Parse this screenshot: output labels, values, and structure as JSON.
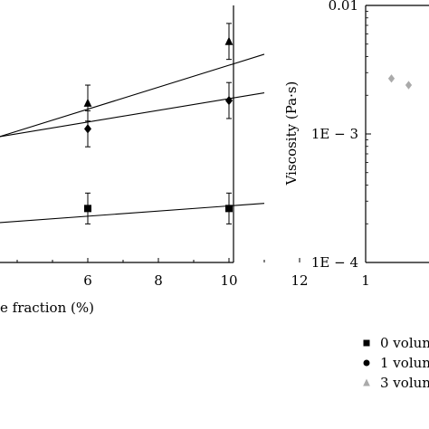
{
  "chart_data": [
    {
      "type": "scatter",
      "title": "",
      "xlabel": "e fraction (%)",
      "ylabel": "",
      "xlim": [
        0,
        12
      ],
      "xticks": [
        "6",
        "8",
        "10",
        "12"
      ],
      "grid": false,
      "series": [
        {
          "marker": "triangle",
          "points": [
            {
              "x": 6,
              "y": 0.62,
              "err": 0.07
            },
            {
              "x": 10,
              "y": 0.86,
              "err": 0.07
            }
          ],
          "fit": [
            {
              "x": 0,
              "y": 0.34
            },
            {
              "x": 11,
              "y": 0.81
            }
          ]
        },
        {
          "marker": "diamond",
          "points": [
            {
              "x": 6,
              "y": 0.52,
              "err": 0.07
            },
            {
              "x": 10,
              "y": 0.63,
              "err": 0.07
            }
          ],
          "fit": [
            {
              "x": 0,
              "y": 0.41
            },
            {
              "x": 11,
              "y": 0.66
            }
          ]
        },
        {
          "marker": "square",
          "points": [
            {
              "x": 6,
              "y": 0.21,
              "err": 0.06
            },
            {
              "x": 10,
              "y": 0.21,
              "err": 0.06
            }
          ],
          "fit": [
            {
              "x": 0,
              "y": 0.12
            },
            {
              "x": 11,
              "y": 0.23
            }
          ]
        }
      ]
    },
    {
      "type": "scatter",
      "title": "",
      "xlabel": "",
      "ylabel": "Viscosity (Pa·s)",
      "yscale": "log",
      "ylim": [
        0.0001,
        0.01
      ],
      "yticks": [
        "0.01",
        "1E − 3",
        "1E − 4"
      ],
      "xticks": [
        "1"
      ],
      "grid": false,
      "series": [
        {
          "name": "3 volun",
          "marker": "triangle",
          "color": "#aaaaaa",
          "points": [
            {
              "x": 1.3,
              "y": 0.0027
            },
            {
              "x": 1.5,
              "y": 0.0024
            }
          ]
        }
      ],
      "legend": {
        "placement": "bottom-right",
        "items": [
          {
            "label": "0 volun",
            "marker": "square",
            "color": "#000000"
          },
          {
            "label": "1 volun",
            "marker": "circle",
            "color": "#000000"
          },
          {
            "label": "3 volun",
            "marker": "triangle",
            "color": "#aaaaaa"
          }
        ]
      }
    }
  ]
}
